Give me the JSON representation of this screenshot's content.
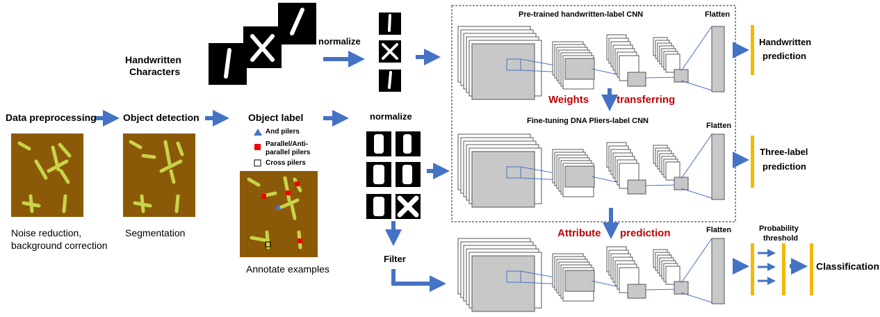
{
  "preprocessing": {
    "stage1_title": "Data preprocessing",
    "stage1_caption": [
      "Noise reduction,",
      "background correction"
    ],
    "stage2_title": "Object detection",
    "stage2_caption": "Segmentation",
    "stage3_title": "Object label",
    "stage3_caption": "Annotate examples",
    "legend": [
      "And pilers",
      "Parallel/Anti-",
      "parallel pilers",
      "Cross pilers"
    ]
  },
  "handwritten": {
    "label_line1": "Handwritten",
    "label_line2": "Characters",
    "normalize_top": "normalize",
    "normalize_bottom": "normalize",
    "filter": "Filter"
  },
  "networks": {
    "cnn1_title": "Pre-trained handwritten-label  CNN",
    "cnn2_title": "Fine-tuning  DNA Pliers-label CNN",
    "flatten": [
      "Flatten",
      "Flatten",
      "Flatten"
    ],
    "weights": "Weights",
    "transferring": "transferring",
    "attribute": "Attribute",
    "prediction": "prediction"
  },
  "outputs": {
    "handwritten_pred": [
      "Handwritten",
      "prediction"
    ],
    "three_label_pred": [
      "Three-label",
      "prediction"
    ],
    "probability": [
      "Probability",
      "threshold"
    ],
    "classification": "Classification"
  },
  "colors": {
    "arrow": "#4472c4",
    "bar": "#f5b800",
    "panel": "#8b5a08",
    "red_text": "#c00000"
  }
}
